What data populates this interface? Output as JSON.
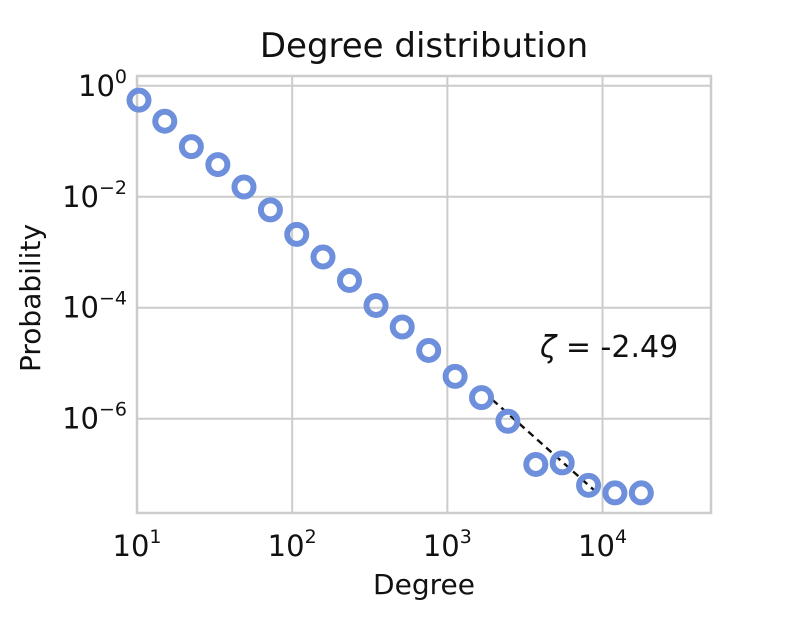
{
  "chart_data": {
    "type": "scatter",
    "title": "Degree distribution",
    "xlabel": "Degree",
    "ylabel": "Probability",
    "xscale": "log",
    "yscale": "log",
    "xlim": [
      10,
      50000
    ],
    "ylim": [
      2e-08,
      1.5
    ],
    "grid": true,
    "marker": "hollow-circle",
    "marker_color": "#6d8fdc",
    "x_ticks": [
      {
        "value": 10,
        "base": "10",
        "exp": "1"
      },
      {
        "value": 100,
        "base": "10",
        "exp": "2"
      },
      {
        "value": 1000,
        "base": "10",
        "exp": "3"
      },
      {
        "value": 10000,
        "base": "10",
        "exp": "4"
      }
    ],
    "y_ticks": [
      {
        "value": 1,
        "base": "10",
        "exp": "0"
      },
      {
        "value": 0.01,
        "base": "10",
        "exp": "−2"
      },
      {
        "value": 0.0001,
        "base": "10",
        "exp": "−4"
      },
      {
        "value": 1e-06,
        "base": "10",
        "exp": "−6"
      }
    ],
    "series": [
      {
        "x": [
          10.3,
          15.1,
          22.4,
          33.2,
          48.9,
          72.4,
          107,
          158,
          234,
          347,
          512,
          758,
          1122,
          1660,
          2455,
          3715,
          5495,
          8128,
          12023,
          17783
        ],
        "y": [
          0.55,
          0.23,
          0.08,
          0.038,
          0.015,
          0.0058,
          0.0021,
          0.00082,
          0.00031,
          0.00011,
          4.5e-05,
          1.7e-05,
          5.8e-06,
          2.4e-06,
          9e-07,
          1.5e-07,
          1.6e-07,
          6.3e-08,
          4.6e-08,
          4.6e-08
        ]
      }
    ],
    "fit_line": {
      "label": "ζ = -2.49",
      "symbol": "ζ",
      "equals": " = ",
      "value_text": "-2.49",
      "slope": -2.49,
      "x": [
        1950,
        9500
      ],
      "y": [
        2.2e-06,
        4.29e-08
      ]
    }
  }
}
